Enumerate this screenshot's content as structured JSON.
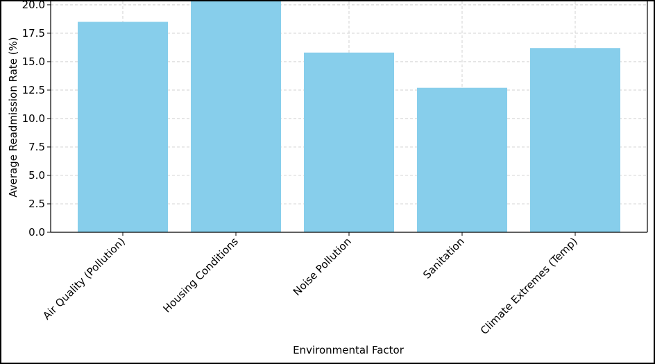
{
  "chart_data": {
    "type": "bar",
    "categories": [
      "Air Quality (Pollution)",
      "Housing Conditions",
      "Noise Pollution",
      "Sanitation",
      "Climate Extremes (Temp)"
    ],
    "values": [
      18.5,
      20.3,
      15.8,
      12.7,
      16.2
    ],
    "xlabel": "Environmental Factor",
    "ylabel": "Average Readmission Rate (%)",
    "ylim": [
      0,
      20.3
    ],
    "yticks": [
      "0.0",
      "2.5",
      "5.0",
      "7.5",
      "10.0",
      "12.5",
      "15.0",
      "17.5",
      "20.0"
    ],
    "grid": true,
    "bar_color": "#87ceeb"
  }
}
